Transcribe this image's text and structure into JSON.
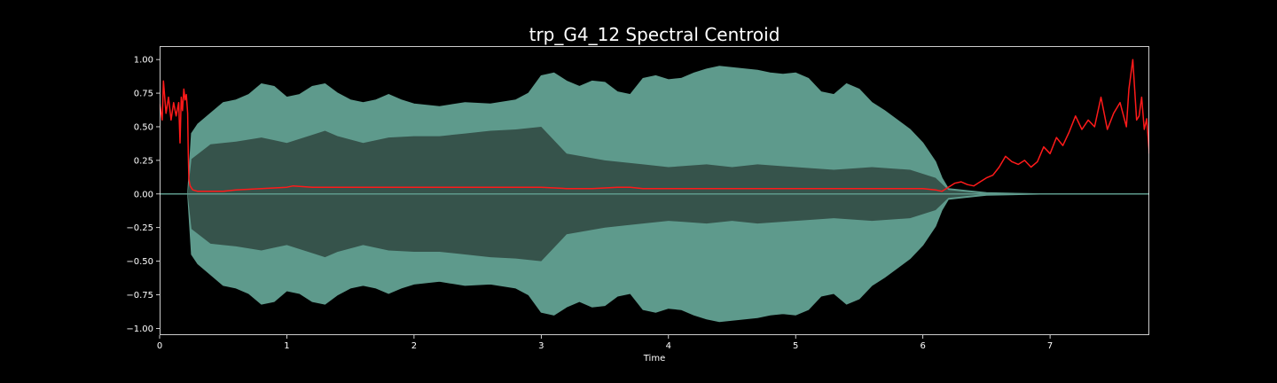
{
  "chart_data": {
    "type": "line",
    "title": "trp_G4_12 Spectral Centroid",
    "xlabel": "Time",
    "ylabel": "",
    "xlim": [
      0,
      7.78
    ],
    "ylim": [
      -1.05,
      1.1
    ],
    "grid": false,
    "legend": "none",
    "x_ticks": [
      0,
      1,
      2,
      3,
      4,
      5,
      6,
      7
    ],
    "x_tick_labels": [
      "0",
      "1",
      "2",
      "3",
      "4",
      "5",
      "6",
      "7"
    ],
    "y_ticks": [
      1.0,
      0.75,
      0.5,
      0.25,
      0.0,
      -0.25,
      -0.5,
      -0.75,
      -1.0
    ],
    "y_tick_labels": [
      "1.00",
      "0.75",
      "0.50",
      "0.25",
      "0.00",
      "−0.25",
      "−0.50",
      "−0.75",
      "−1.00"
    ],
    "colors": {
      "background": "#000000",
      "axes": "#ffffff",
      "waveform_outer": "#5e9a8c",
      "waveform_inner": "#36534b",
      "centroid": "#ff1a1a"
    },
    "waveform": {
      "name": "",
      "envelope_outer": [
        [
          0.0,
          0.0
        ],
        [
          0.22,
          0.0
        ],
        [
          0.25,
          0.45
        ],
        [
          0.3,
          0.52
        ],
        [
          0.4,
          0.6
        ],
        [
          0.5,
          0.68
        ],
        [
          0.6,
          0.7
        ],
        [
          0.7,
          0.74
        ],
        [
          0.8,
          0.82
        ],
        [
          0.9,
          0.8
        ],
        [
          1.0,
          0.72
        ],
        [
          1.1,
          0.74
        ],
        [
          1.2,
          0.8
        ],
        [
          1.3,
          0.82
        ],
        [
          1.4,
          0.75
        ],
        [
          1.5,
          0.7
        ],
        [
          1.6,
          0.68
        ],
        [
          1.7,
          0.7
        ],
        [
          1.8,
          0.74
        ],
        [
          1.9,
          0.7
        ],
        [
          2.0,
          0.67
        ],
        [
          2.2,
          0.65
        ],
        [
          2.4,
          0.68
        ],
        [
          2.6,
          0.67
        ],
        [
          2.8,
          0.7
        ],
        [
          2.9,
          0.75
        ],
        [
          3.0,
          0.88
        ],
        [
          3.1,
          0.9
        ],
        [
          3.2,
          0.84
        ],
        [
          3.3,
          0.8
        ],
        [
          3.4,
          0.84
        ],
        [
          3.5,
          0.83
        ],
        [
          3.6,
          0.76
        ],
        [
          3.7,
          0.74
        ],
        [
          3.8,
          0.86
        ],
        [
          3.9,
          0.88
        ],
        [
          4.0,
          0.85
        ],
        [
          4.1,
          0.86
        ],
        [
          4.2,
          0.9
        ],
        [
          4.3,
          0.93
        ],
        [
          4.4,
          0.95
        ],
        [
          4.5,
          0.94
        ],
        [
          4.6,
          0.93
        ],
        [
          4.7,
          0.92
        ],
        [
          4.8,
          0.9
        ],
        [
          4.9,
          0.89
        ],
        [
          5.0,
          0.9
        ],
        [
          5.1,
          0.86
        ],
        [
          5.2,
          0.76
        ],
        [
          5.3,
          0.74
        ],
        [
          5.4,
          0.82
        ],
        [
          5.5,
          0.78
        ],
        [
          5.6,
          0.68
        ],
        [
          5.7,
          0.62
        ],
        [
          5.8,
          0.55
        ],
        [
          5.9,
          0.48
        ],
        [
          6.0,
          0.38
        ],
        [
          6.1,
          0.24
        ],
        [
          6.15,
          0.12
        ],
        [
          6.2,
          0.04
        ],
        [
          6.3,
          0.03
        ],
        [
          6.5,
          0.01
        ],
        [
          7.0,
          0.0
        ],
        [
          7.78,
          0.0
        ]
      ],
      "envelope_inner": [
        [
          0.0,
          0.0
        ],
        [
          0.22,
          0.0
        ],
        [
          0.25,
          0.26
        ],
        [
          0.4,
          0.37
        ],
        [
          0.6,
          0.39
        ],
        [
          0.8,
          0.42
        ],
        [
          0.9,
          0.4
        ],
        [
          1.0,
          0.38
        ],
        [
          1.2,
          0.44
        ],
        [
          1.3,
          0.47
        ],
        [
          1.4,
          0.43
        ],
        [
          1.6,
          0.38
        ],
        [
          1.8,
          0.42
        ],
        [
          2.0,
          0.43
        ],
        [
          2.2,
          0.43
        ],
        [
          2.4,
          0.45
        ],
        [
          2.6,
          0.47
        ],
        [
          2.8,
          0.48
        ],
        [
          3.0,
          0.5
        ],
        [
          3.2,
          0.3
        ],
        [
          3.5,
          0.25
        ],
        [
          3.8,
          0.22
        ],
        [
          4.0,
          0.2
        ],
        [
          4.3,
          0.22
        ],
        [
          4.5,
          0.2
        ],
        [
          4.7,
          0.22
        ],
        [
          5.0,
          0.2
        ],
        [
          5.3,
          0.18
        ],
        [
          5.6,
          0.2
        ],
        [
          5.9,
          0.18
        ],
        [
          6.1,
          0.12
        ],
        [
          6.2,
          0.03
        ],
        [
          6.5,
          0.0
        ],
        [
          7.78,
          0.0
        ]
      ]
    },
    "centroid": {
      "name": "",
      "points": [
        [
          0.0,
          0.67
        ],
        [
          0.02,
          0.55
        ],
        [
          0.03,
          0.84
        ],
        [
          0.05,
          0.6
        ],
        [
          0.07,
          0.72
        ],
        [
          0.09,
          0.55
        ],
        [
          0.11,
          0.68
        ],
        [
          0.13,
          0.58
        ],
        [
          0.15,
          0.68
        ],
        [
          0.16,
          0.38
        ],
        [
          0.17,
          0.72
        ],
        [
          0.18,
          0.62
        ],
        [
          0.19,
          0.78
        ],
        [
          0.2,
          0.7
        ],
        [
          0.21,
          0.74
        ],
        [
          0.22,
          0.6
        ],
        [
          0.225,
          0.3
        ],
        [
          0.23,
          0.11
        ],
        [
          0.24,
          0.06
        ],
        [
          0.26,
          0.03
        ],
        [
          0.3,
          0.02
        ],
        [
          0.4,
          0.02
        ],
        [
          0.5,
          0.02
        ],
        [
          0.6,
          0.03
        ],
        [
          0.8,
          0.04
        ],
        [
          1.0,
          0.05
        ],
        [
          1.05,
          0.06
        ],
        [
          1.2,
          0.05
        ],
        [
          1.4,
          0.05
        ],
        [
          1.6,
          0.05
        ],
        [
          1.8,
          0.05
        ],
        [
          2.0,
          0.05
        ],
        [
          2.2,
          0.05
        ],
        [
          2.4,
          0.05
        ],
        [
          2.6,
          0.05
        ],
        [
          2.8,
          0.05
        ],
        [
          3.0,
          0.05
        ],
        [
          3.2,
          0.04
        ],
        [
          3.4,
          0.04
        ],
        [
          3.6,
          0.05
        ],
        [
          3.7,
          0.05
        ],
        [
          3.8,
          0.04
        ],
        [
          4.0,
          0.04
        ],
        [
          4.2,
          0.04
        ],
        [
          4.4,
          0.04
        ],
        [
          4.6,
          0.04
        ],
        [
          4.8,
          0.04
        ],
        [
          5.0,
          0.04
        ],
        [
          5.2,
          0.04
        ],
        [
          5.4,
          0.04
        ],
        [
          5.6,
          0.04
        ],
        [
          5.8,
          0.04
        ],
        [
          6.0,
          0.04
        ],
        [
          6.1,
          0.03
        ],
        [
          6.15,
          0.02
        ],
        [
          6.2,
          0.05
        ],
        [
          6.25,
          0.08
        ],
        [
          6.3,
          0.09
        ],
        [
          6.35,
          0.07
        ],
        [
          6.4,
          0.06
        ],
        [
          6.45,
          0.09
        ],
        [
          6.5,
          0.12
        ],
        [
          6.55,
          0.14
        ],
        [
          6.6,
          0.2
        ],
        [
          6.65,
          0.28
        ],
        [
          6.7,
          0.24
        ],
        [
          6.75,
          0.22
        ],
        [
          6.8,
          0.25
        ],
        [
          6.85,
          0.2
        ],
        [
          6.9,
          0.24
        ],
        [
          6.95,
          0.35
        ],
        [
          7.0,
          0.3
        ],
        [
          7.05,
          0.42
        ],
        [
          7.1,
          0.36
        ],
        [
          7.15,
          0.46
        ],
        [
          7.2,
          0.58
        ],
        [
          7.25,
          0.48
        ],
        [
          7.3,
          0.55
        ],
        [
          7.35,
          0.5
        ],
        [
          7.4,
          0.72
        ],
        [
          7.45,
          0.48
        ],
        [
          7.5,
          0.6
        ],
        [
          7.55,
          0.68
        ],
        [
          7.6,
          0.5
        ],
        [
          7.62,
          0.78
        ],
        [
          7.65,
          1.0
        ],
        [
          7.68,
          0.55
        ],
        [
          7.7,
          0.58
        ],
        [
          7.72,
          0.72
        ],
        [
          7.74,
          0.48
        ],
        [
          7.76,
          0.56
        ],
        [
          7.78,
          0.3
        ]
      ]
    }
  }
}
